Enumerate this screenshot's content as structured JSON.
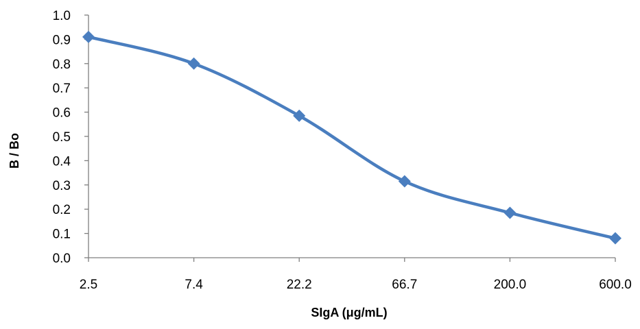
{
  "chart_data": {
    "type": "line",
    "title": "",
    "xlabel": "SIgA  (μg/mL)",
    "ylabel": "B / Bo",
    "categories": [
      "2.5",
      "7.4",
      "22.2",
      "66.7",
      "200.0",
      "600.0"
    ],
    "series": [
      {
        "values": [
          0.91,
          0.8,
          0.585,
          0.315,
          0.185,
          0.08
        ]
      }
    ],
    "ylim": [
      0,
      1.0
    ],
    "yticks": [
      "0.0",
      "0.1",
      "0.2",
      "0.3",
      "0.4",
      "0.5",
      "0.6",
      "0.7",
      "0.8",
      "0.9",
      "1.0"
    ],
    "grid": false,
    "legend": "none",
    "marker": "diamond",
    "smooth": true,
    "colors": {
      "series": "#4a7ebf",
      "axis": "#7f7f7f"
    }
  }
}
